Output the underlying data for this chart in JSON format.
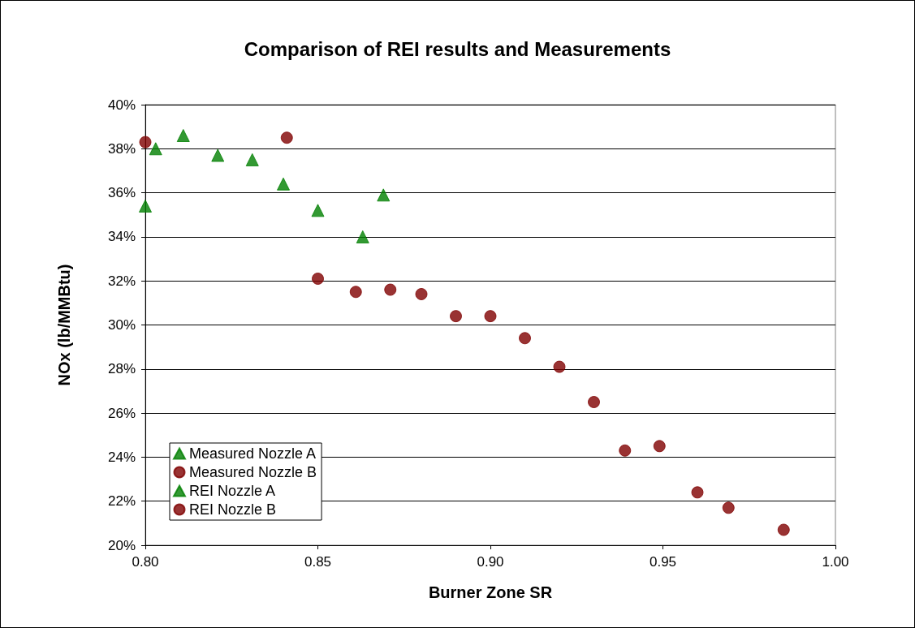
{
  "chart_data": {
    "type": "scatter",
    "title": "Comparison of REI results and Measurements",
    "xlabel": "Burner Zone SR",
    "ylabel": "NOx (lb/MMBtu)",
    "xlim": [
      0.8,
      1.0
    ],
    "xticks": [
      {
        "value": 0.8,
        "label": "0.80"
      },
      {
        "value": 0.85,
        "label": "0.85"
      },
      {
        "value": 0.9,
        "label": "0.90"
      },
      {
        "value": 0.95,
        "label": "0.95"
      },
      {
        "value": 1.0,
        "label": "1.00"
      }
    ],
    "ylim": [
      20,
      40
    ],
    "yticks": [
      {
        "value": 20,
        "label": "20%"
      },
      {
        "value": 22,
        "label": "22%"
      },
      {
        "value": 24,
        "label": "24%"
      },
      {
        "value": 26,
        "label": "26%"
      },
      {
        "value": 28,
        "label": "28%"
      },
      {
        "value": 30,
        "label": "30%"
      },
      {
        "value": 32,
        "label": "32%"
      },
      {
        "value": 34,
        "label": "34%"
      },
      {
        "value": 36,
        "label": "36%"
      },
      {
        "value": 38,
        "label": "38%"
      },
      {
        "value": 40,
        "label": "40%"
      }
    ],
    "grid": "y",
    "legend": "bottom left",
    "series": [
      {
        "name": "Measured Nozzle A",
        "color": "#008000",
        "marker": "triangle",
        "x": [
          0.803,
          0.811,
          0.821,
          0.831,
          0.84,
          0.85,
          0.863,
          0.869
        ],
        "values": [
          38.0,
          38.6,
          37.7,
          37.5,
          36.4,
          35.2,
          34.0,
          35.9
        ]
      },
      {
        "name": "Measured Nozzle B",
        "color": "#800000",
        "marker": "circle",
        "x": [
          0.841,
          0.85,
          0.861,
          0.871,
          0.88,
          0.89,
          0.9,
          0.91,
          0.92,
          0.93,
          0.939,
          0.949,
          0.96,
          0.969,
          0.985
        ],
        "values": [
          38.5,
          32.1,
          31.5,
          31.6,
          31.4,
          30.4,
          30.4,
          29.4,
          28.1,
          26.5,
          24.3,
          24.5,
          22.4,
          21.7,
          20.7
        ]
      },
      {
        "name": "REI Nozzle A",
        "color": "#008000",
        "marker": "triangle",
        "x": [
          0.8
        ],
        "values": [
          35.4
        ]
      },
      {
        "name": "REI Nozzle B",
        "color": "#800000",
        "marker": "circle",
        "x": [
          0.8
        ],
        "values": [
          38.3
        ]
      }
    ]
  }
}
